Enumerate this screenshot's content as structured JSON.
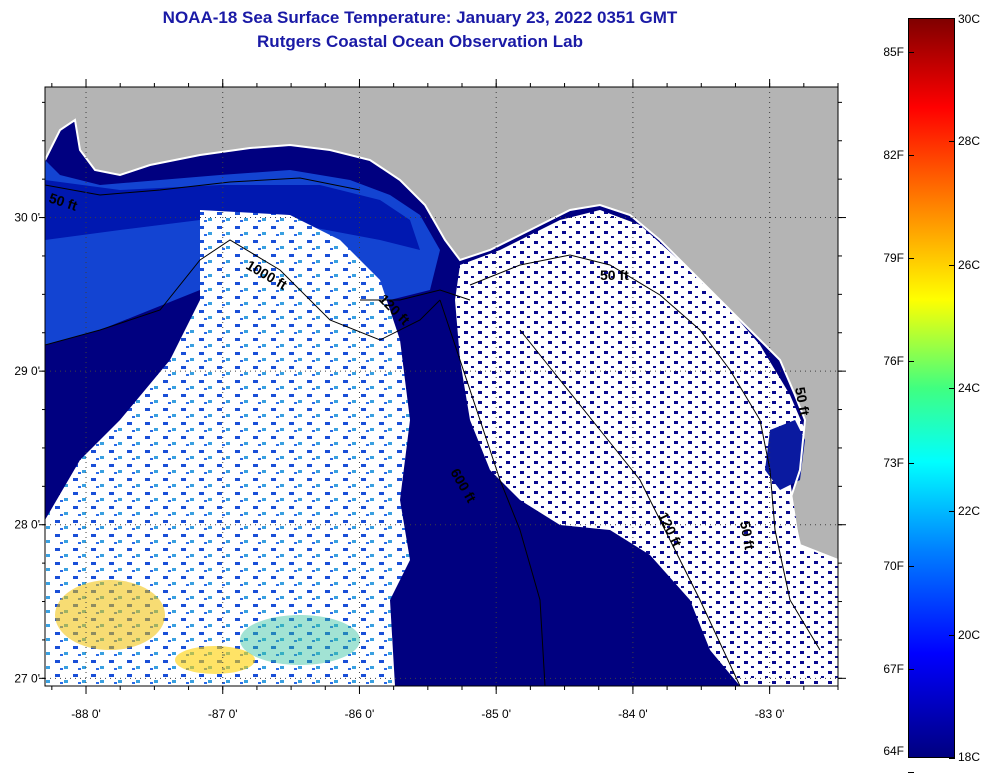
{
  "title_line1": "NOAA-18 Sea Surface Temperature:  January 23, 2022 0351 GMT",
  "title_line2": "Rutgers Coastal Ocean Observation Lab",
  "lon_labels": [
    "-88 0'",
    "-87 0'",
    "-86 0'",
    "-85 0'",
    "-84 0'",
    "-83 0'"
  ],
  "lat_labels": [
    "30 0'",
    "29 0'",
    "28 0'",
    "27 0'"
  ],
  "map": {
    "lon_range": [
      -88.3,
      -82.5
    ],
    "lat_range": [
      26.95,
      30.85
    ],
    "lon_ticks": [
      -88,
      -87,
      -86,
      -85,
      -84,
      -83
    ],
    "lat_ticks": [
      30,
      29,
      28,
      27
    ],
    "land_color": "#b4b4b4",
    "cloud_color": "#ffffff",
    "water_color": "#000080"
  },
  "contours": [
    {
      "label": "50 ft"
    },
    {
      "label": "1000 ft"
    },
    {
      "label": "120 ft"
    },
    {
      "label": "50 ft"
    },
    {
      "label": "600 ft"
    },
    {
      "label": "120 ft"
    },
    {
      "label": "50 ft"
    },
    {
      "label": "50 ft"
    }
  ],
  "colorbar": {
    "fahrenheit": [
      "85F",
      "82F",
      "79F",
      "76F",
      "73F",
      "70F",
      "67F",
      "64F"
    ],
    "celsius": [
      "30C",
      "28C",
      "26C",
      "24C",
      "22C",
      "20C",
      "18C"
    ],
    "range_c": [
      18,
      30
    ]
  }
}
